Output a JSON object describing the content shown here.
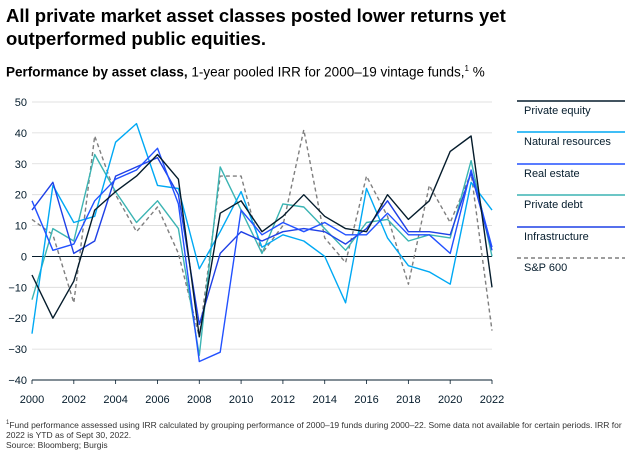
{
  "header": {
    "title": "All private market asset classes posted lower returns yet outperformed public equities.",
    "subtitle_bold": "Performance by asset class,",
    "subtitle_rest": " 1-year pooled IRR for 2000–19 vintage funds,",
    "subtitle_sup": "1",
    "subtitle_unit": " %"
  },
  "footnote": {
    "sup": "1",
    "line1": "Fund performance assessed using IRR calculated by grouping performance of 2000–19 funds during 2000–22. Some data not available for certain periods. IRR for 2022 is YTD as of Sept 30, 2022.",
    "source": "Source: Bloomberg; Burgis"
  },
  "chart_data": {
    "type": "line",
    "x": [
      2000,
      2001,
      2002,
      2003,
      2004,
      2005,
      2006,
      2007,
      2008,
      2009,
      2010,
      2011,
      2012,
      2013,
      2014,
      2015,
      2016,
      2017,
      2018,
      2019,
      2020,
      2021,
      2022
    ],
    "xticks": [
      "2000",
      "2002",
      "2004",
      "2006",
      "2008",
      "2010",
      "2012",
      "2014",
      "2016",
      "2018",
      "2020",
      "2022"
    ],
    "ylim": [
      -40,
      50
    ],
    "yticks": [
      "50",
      "40",
      "30",
      "20",
      "10",
      "0",
      "−10",
      "−20",
      "−30",
      "−40"
    ],
    "grid": true,
    "legend_position": "right",
    "series": [
      {
        "name": "Private equity",
        "color": "#051c2c",
        "dash": "",
        "values": [
          -6,
          -20,
          -8,
          15,
          21,
          26,
          33,
          25,
          -26,
          14,
          18,
          8,
          13,
          20,
          13,
          9,
          8,
          20,
          12,
          18,
          34,
          39,
          -10
        ]
      },
      {
        "name": "Natural resources",
        "color": "#00a9f4",
        "dash": "",
        "values": [
          -25,
          23,
          11,
          13,
          37,
          43,
          23,
          22,
          -4,
          8,
          21,
          3,
          7,
          5,
          0,
          -15,
          22,
          6,
          -3,
          -5,
          -9,
          24,
          15
        ]
      },
      {
        "name": "Real estate",
        "color": "#2251ff",
        "dash": "",
        "values": [
          18,
          2,
          4,
          18,
          25,
          28,
          35,
          17,
          -34,
          -31,
          15,
          7,
          11,
          8,
          11,
          7,
          7,
          14,
          7,
          7,
          1,
          28,
          3
        ]
      },
      {
        "name": "Private debt",
        "color": "#3bb4b3",
        "dash": "",
        "values": [
          -14,
          9,
          5,
          33,
          21,
          11,
          18,
          9,
          -32,
          29,
          15,
          1,
          17,
          16,
          9,
          2,
          11,
          12,
          5,
          7,
          6,
          31,
          0
        ]
      },
      {
        "name": "Infrastructure",
        "color": "#1f40e6",
        "dash": "",
        "values": [
          15,
          24,
          1,
          5,
          26,
          29,
          32,
          20,
          -22,
          1,
          8,
          5,
          8,
          9,
          8,
          4,
          9,
          18,
          8,
          8,
          7,
          27,
          2
        ]
      },
      {
        "name": "S&P 600",
        "color": "#7f7f7f",
        "dash": "4,3",
        "values": [
          12,
          7,
          -15,
          39,
          20,
          8,
          16,
          1,
          -26,
          26,
          26,
          1,
          10,
          41,
          6,
          -2,
          26,
          13,
          -9,
          23,
          11,
          27,
          -24
        ]
      }
    ]
  }
}
